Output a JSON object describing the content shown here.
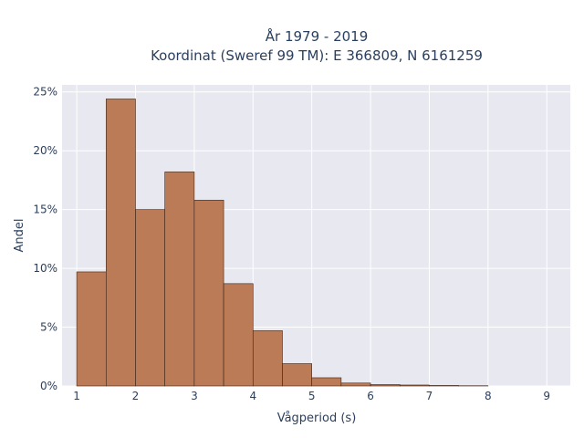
{
  "chart_data": {
    "type": "bar",
    "title_lines": [
      "År 1979 - 2019",
      "Koordinat (Sweref 99 TM): E 366809, N 6161259"
    ],
    "xlabel": "Vågperiod (s)",
    "ylabel": "Andel",
    "x_ticks": [
      "1",
      "2",
      "3",
      "4",
      "5",
      "6",
      "7",
      "8",
      "9"
    ],
    "y_ticks": [
      "0%",
      "5%",
      "10%",
      "15%",
      "20%",
      "25%"
    ],
    "xlim": [
      0.75,
      9.4
    ],
    "ylim": [
      0,
      25.6
    ],
    "bin_edges": [
      1.0,
      1.5,
      2.0,
      2.5,
      3.0,
      3.5,
      4.0,
      4.5,
      5.0,
      5.5,
      6.0,
      6.5,
      7.0,
      7.5,
      8.0
    ],
    "values": [
      9.7,
      24.4,
      15.0,
      18.2,
      15.8,
      8.7,
      4.7,
      1.9,
      0.7,
      0.25,
      0.12,
      0.08,
      0.04,
      0.02
    ],
    "bar_color": "#bc7b57",
    "bar_edge_color": "#3a2418",
    "plot_bg": "#e8e8f0",
    "grid": true
  }
}
